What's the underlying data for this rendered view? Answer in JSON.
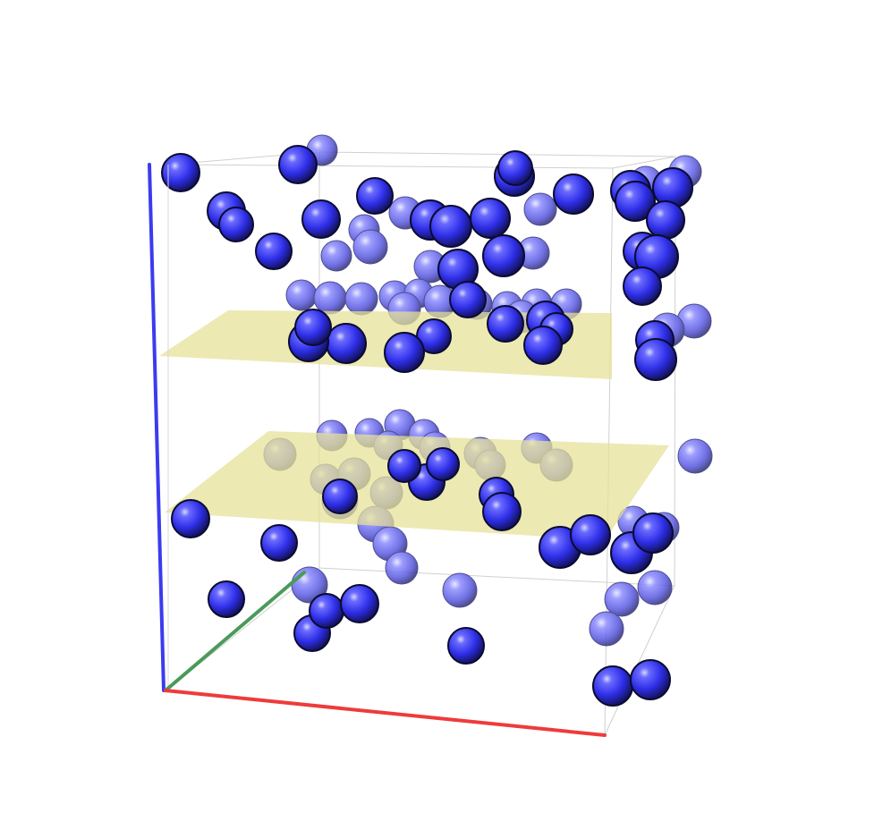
{
  "scene": {
    "description_type": "3d-molecular-render",
    "background_color": "#ffffff",
    "atom_color": "#3a3af0",
    "atom_highlight": "#b8b8ff",
    "atom_rim": "#101040",
    "slab_color": "#e6e29a",
    "frame_color": "#cfcfcf",
    "axes": [
      {
        "name": "x-axis",
        "color": "#ee3b3b"
      },
      {
        "name": "y-axis",
        "color": "#4a9a5a"
      },
      {
        "name": "z-axis",
        "color": "#3b3bf0"
      }
    ],
    "slabs": [
      {
        "name": "upper-slab"
      },
      {
        "name": "lower-slab"
      }
    ]
  }
}
